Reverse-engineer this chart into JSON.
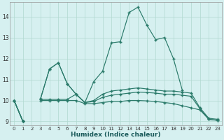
{
  "xlabel": "Humidex (Indice chaleur)",
  "background_color": "#d6f0f0",
  "grid_color": "#b0d8d0",
  "line_color": "#2a7a6a",
  "xlim": [
    -0.5,
    23.5
  ],
  "ylim": [
    8.8,
    14.7
  ],
  "yticks": [
    9,
    10,
    11,
    12,
    13,
    14
  ],
  "xticks": [
    0,
    1,
    2,
    3,
    4,
    5,
    6,
    7,
    8,
    9,
    10,
    11,
    12,
    13,
    14,
    15,
    16,
    17,
    18,
    19,
    20,
    21,
    22,
    23
  ],
  "series": [
    [
      10.0,
      9.0,
      null,
      10.1,
      11.5,
      11.8,
      10.8,
      10.3,
      9.9,
      10.9,
      11.4,
      12.75,
      12.8,
      14.2,
      14.45,
      13.6,
      12.9,
      13.0,
      12.0,
      10.5,
      null,
      null,
      null,
      null
    ],
    [
      10.0,
      9.0,
      null,
      10.1,
      11.5,
      11.8,
      10.8,
      10.3,
      9.9,
      10.0,
      10.3,
      10.45,
      10.5,
      10.55,
      10.6,
      10.55,
      10.5,
      10.45,
      10.45,
      10.4,
      10.35,
      9.65,
      9.15,
      9.1
    ],
    [
      10.0,
      9.0,
      null,
      10.05,
      10.05,
      10.05,
      10.05,
      10.3,
      9.9,
      9.95,
      10.15,
      10.25,
      10.3,
      10.35,
      10.4,
      10.38,
      10.35,
      10.3,
      10.3,
      10.25,
      10.2,
      9.6,
      9.1,
      9.05
    ],
    [
      10.0,
      9.0,
      null,
      10.0,
      10.0,
      10.0,
      10.0,
      10.0,
      9.85,
      9.85,
      9.9,
      9.95,
      9.95,
      10.0,
      10.0,
      9.98,
      9.95,
      9.9,
      9.85,
      9.75,
      9.65,
      9.55,
      9.1,
      9.05
    ]
  ]
}
